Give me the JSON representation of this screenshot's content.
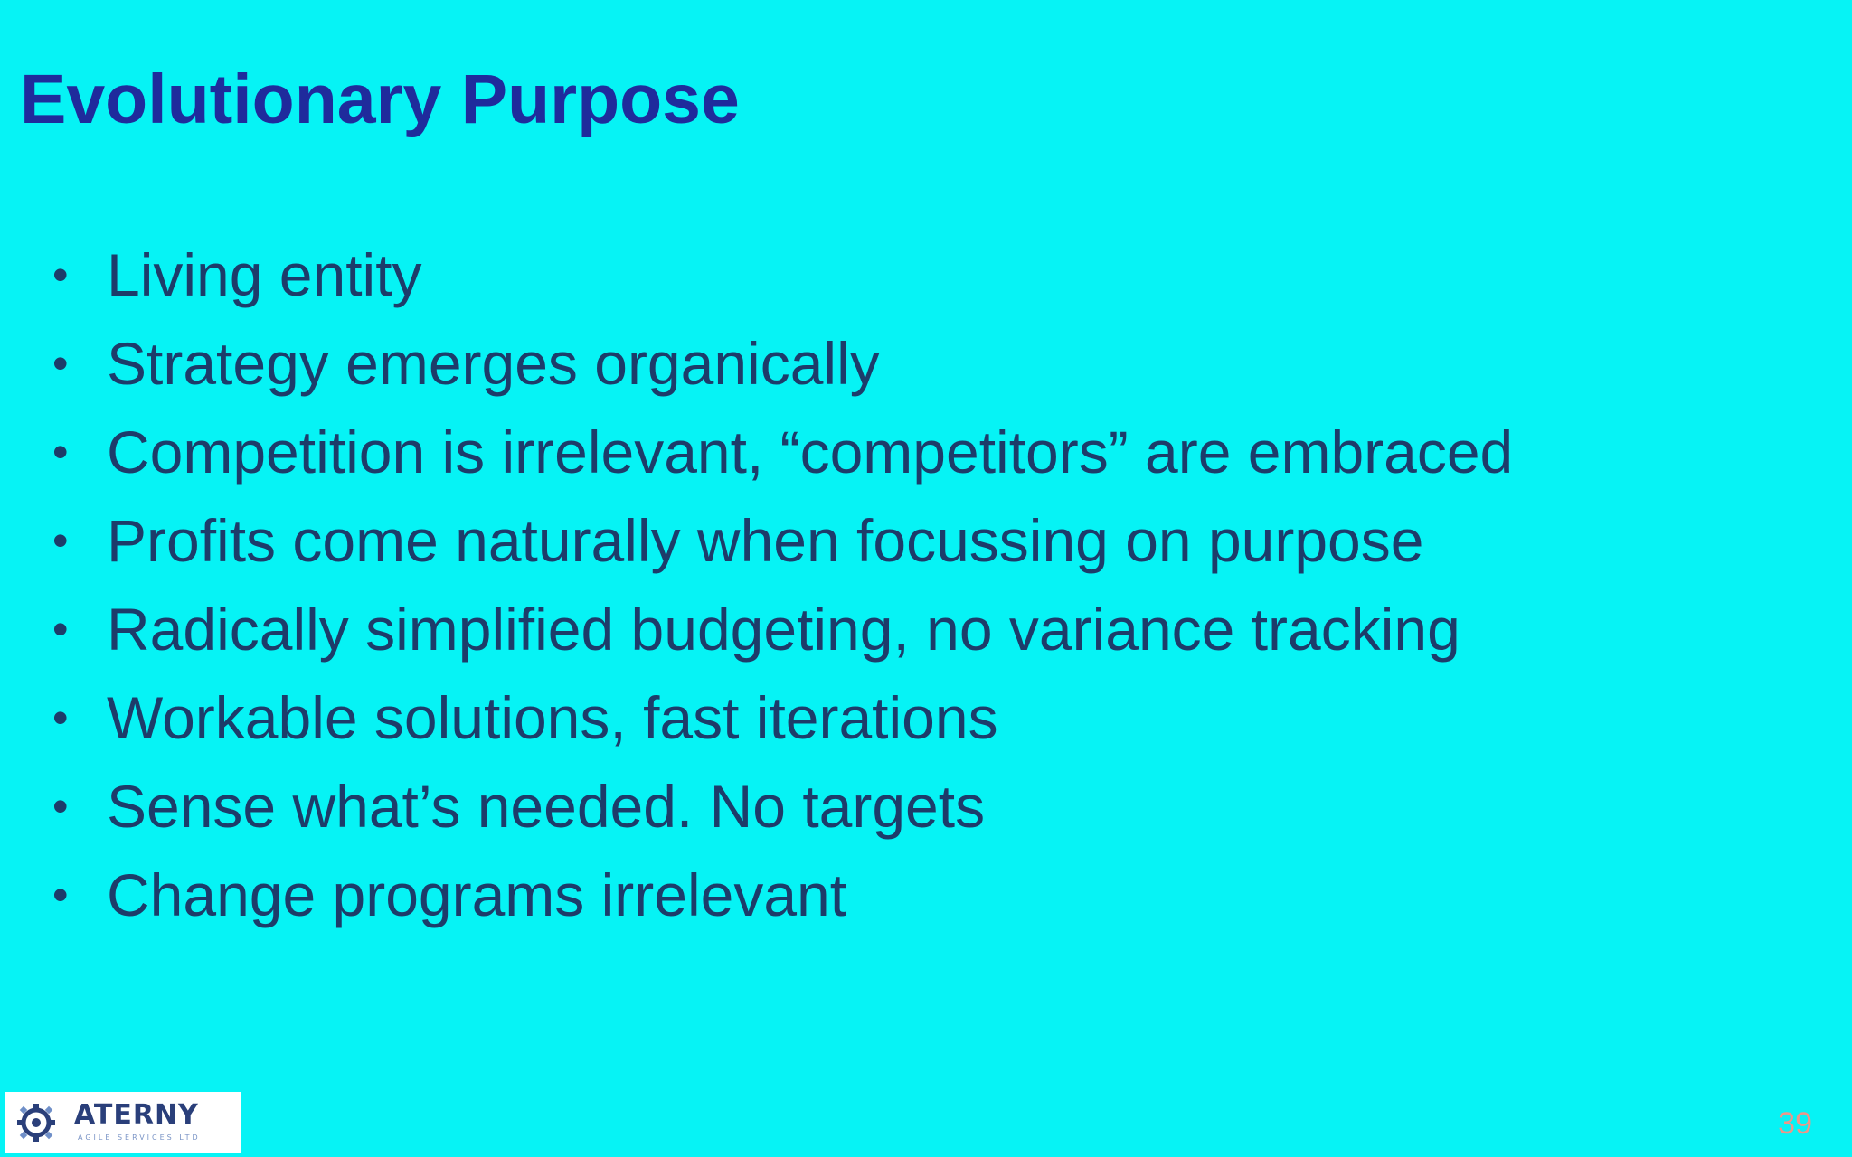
{
  "slide": {
    "title": "Evolutionary Purpose",
    "bullets": [
      "Living entity",
      "Strategy emerges organically",
      "Competition is irrelevant, “competitors” are embraced",
      "Profits come naturally when focussing on purpose",
      "Radically simplified budgeting, no variance tracking",
      "Workable solutions, fast iterations",
      "Sense what’s needed. No targets",
      "Change programs irrelevant"
    ],
    "bullet_glyph": "•",
    "page_number": "39"
  },
  "logo": {
    "name": "ATERNY",
    "subtitle": "AGILE SERVICES LTD",
    "icon": "gear-icon"
  },
  "colors": {
    "background": "#06f3f5",
    "title": "#1f2b9c",
    "body_text": "#1d3c6a",
    "page_number": "#ee9688"
  }
}
